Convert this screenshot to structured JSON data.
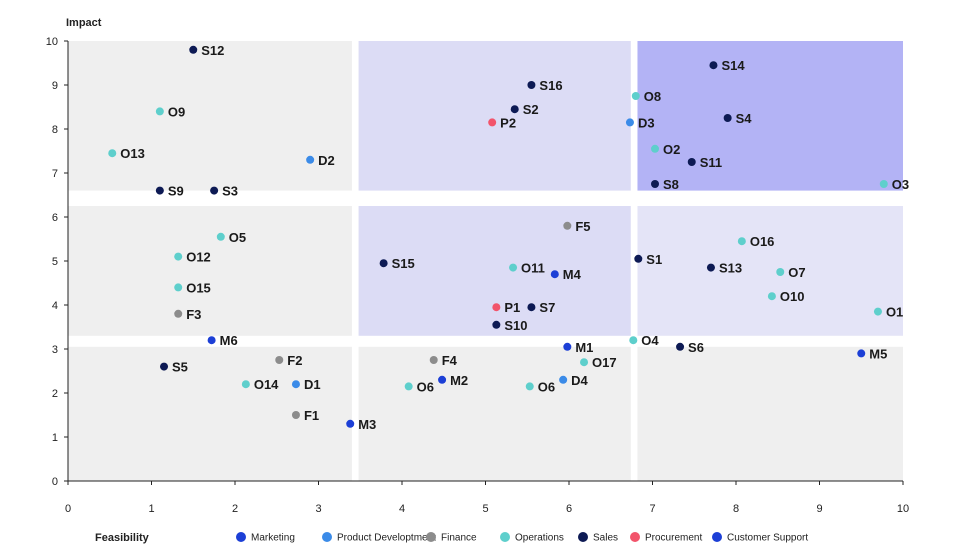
{
  "colors": {
    "region_gray": "#efefef",
    "region_lavender": "#dcdcf5",
    "region_light_lavender": "#e4e4f7",
    "region_violet": "#b3b3f5",
    "axis": "#222222"
  },
  "chart_data": {
    "type": "scatter",
    "xlabel": "Feasibility",
    "ylabel": "Impact",
    "xlim": [
      0,
      10
    ],
    "ylim": [
      0,
      10
    ],
    "x_ticks": [
      "0",
      "1",
      "2",
      "3",
      "4",
      "5",
      "6",
      "7",
      "8",
      "9",
      "10"
    ],
    "y_ticks": [
      "0",
      "1",
      "2",
      "3",
      "4",
      "5",
      "6",
      "7",
      "8",
      "9",
      "10"
    ],
    "legend_position": "bottom",
    "categories": [
      {
        "name": "Marketing",
        "color": "#1c3fd6"
      },
      {
        "name": "Product Developtment",
        "color": "#3b8be8"
      },
      {
        "name": "Finance",
        "color": "#8c8c8c"
      },
      {
        "name": "Operations",
        "color": "#5ecfcc"
      },
      {
        "name": "Sales",
        "color": "#0d1a54"
      },
      {
        "name": "Procurement",
        "color": "#f2546b"
      },
      {
        "name": "Customer Support",
        "color": "#1c3fd6"
      }
    ],
    "regions": [
      {
        "x": [
          0,
          3.4
        ],
        "y": [
          0,
          3.05
        ],
        "fill": "region_gray"
      },
      {
        "x": [
          3.48,
          6.74
        ],
        "y": [
          0,
          3.05
        ],
        "fill": "region_gray"
      },
      {
        "x": [
          6.82,
          10
        ],
        "y": [
          0,
          3.05
        ],
        "fill": "region_gray"
      },
      {
        "x": [
          0,
          3.4
        ],
        "y": [
          3.3,
          6.25
        ],
        "fill": "region_gray"
      },
      {
        "x": [
          3.48,
          6.74
        ],
        "y": [
          3.3,
          6.25
        ],
        "fill": "region_lavender"
      },
      {
        "x": [
          6.82,
          10
        ],
        "y": [
          3.3,
          6.25
        ],
        "fill": "region_light_lavender"
      },
      {
        "x": [
          0,
          3.4
        ],
        "y": [
          6.6,
          10
        ],
        "fill": "region_gray"
      },
      {
        "x": [
          3.48,
          6.74
        ],
        "y": [
          6.6,
          10
        ],
        "fill": "region_lavender"
      },
      {
        "x": [
          6.82,
          10
        ],
        "y": [
          6.6,
          10
        ],
        "fill": "region_violet"
      }
    ],
    "points": [
      {
        "label": "S12",
        "x": 1.5,
        "y": 9.8,
        "category": "Sales"
      },
      {
        "label": "O9",
        "x": 1.1,
        "y": 8.4,
        "category": "Operations"
      },
      {
        "label": "O13",
        "x": 0.53,
        "y": 7.45,
        "category": "Operations"
      },
      {
        "label": "D2",
        "x": 2.9,
        "y": 7.3,
        "category": "Product Developtment"
      },
      {
        "label": "S9",
        "x": 1.1,
        "y": 6.6,
        "category": "Sales"
      },
      {
        "label": "S3",
        "x": 1.75,
        "y": 6.6,
        "category": "Sales"
      },
      {
        "label": "S16",
        "x": 5.55,
        "y": 9.0,
        "category": "Sales"
      },
      {
        "label": "S2",
        "x": 5.35,
        "y": 8.45,
        "category": "Sales"
      },
      {
        "label": "P2",
        "x": 5.08,
        "y": 8.15,
        "category": "Procurement"
      },
      {
        "label": "O8",
        "x": 6.8,
        "y": 8.75,
        "category": "Operations"
      },
      {
        "label": "D3",
        "x": 6.73,
        "y": 8.15,
        "category": "Product Developtment"
      },
      {
        "label": "S14",
        "x": 7.73,
        "y": 9.45,
        "category": "Sales"
      },
      {
        "label": "S4",
        "x": 7.9,
        "y": 8.25,
        "category": "Sales"
      },
      {
        "label": "O2",
        "x": 7.03,
        "y": 7.55,
        "category": "Operations"
      },
      {
        "label": "S11",
        "x": 7.47,
        "y": 7.25,
        "category": "Sales"
      },
      {
        "label": "S8",
        "x": 7.03,
        "y": 6.75,
        "category": "Sales"
      },
      {
        "label": "O3",
        "x": 9.77,
        "y": 6.75,
        "category": "Operations"
      },
      {
        "label": "O5",
        "x": 1.83,
        "y": 5.55,
        "category": "Operations"
      },
      {
        "label": "O12",
        "x": 1.32,
        "y": 5.1,
        "category": "Operations"
      },
      {
        "label": "O15",
        "x": 1.32,
        "y": 4.4,
        "category": "Operations"
      },
      {
        "label": "F3",
        "x": 1.32,
        "y": 3.8,
        "category": "Finance"
      },
      {
        "label": "S15",
        "x": 3.78,
        "y": 4.95,
        "category": "Sales"
      },
      {
        "label": "F5",
        "x": 5.98,
        "y": 5.8,
        "category": "Finance"
      },
      {
        "label": "O11",
        "x": 5.33,
        "y": 4.85,
        "category": "Operations"
      },
      {
        "label": "M4",
        "x": 5.83,
        "y": 4.7,
        "category": "Marketing"
      },
      {
        "label": "P1",
        "x": 5.13,
        "y": 3.95,
        "category": "Procurement"
      },
      {
        "label": "S7",
        "x": 5.55,
        "y": 3.95,
        "category": "Sales"
      },
      {
        "label": "S10",
        "x": 5.13,
        "y": 3.55,
        "category": "Sales"
      },
      {
        "label": "S1",
        "x": 6.83,
        "y": 5.05,
        "category": "Sales"
      },
      {
        "label": "O16",
        "x": 8.07,
        "y": 5.45,
        "category": "Operations"
      },
      {
        "label": "S13",
        "x": 7.7,
        "y": 4.85,
        "category": "Sales"
      },
      {
        "label": "O7",
        "x": 8.53,
        "y": 4.75,
        "category": "Operations"
      },
      {
        "label": "O10",
        "x": 8.43,
        "y": 4.2,
        "category": "Operations"
      },
      {
        "label": "O1",
        "x": 9.7,
        "y": 3.85,
        "category": "Operations"
      },
      {
        "label": "M6",
        "x": 1.72,
        "y": 3.2,
        "category": "Marketing"
      },
      {
        "label": "S5",
        "x": 1.15,
        "y": 2.6,
        "category": "Sales"
      },
      {
        "label": "F2",
        "x": 2.53,
        "y": 2.75,
        "category": "Finance"
      },
      {
        "label": "O14",
        "x": 2.13,
        "y": 2.2,
        "category": "Operations"
      },
      {
        "label": "D1",
        "x": 2.73,
        "y": 2.2,
        "category": "Product Developtment"
      },
      {
        "label": "F1",
        "x": 2.73,
        "y": 1.5,
        "category": "Finance"
      },
      {
        "label": "M3",
        "x": 3.38,
        "y": 1.3,
        "category": "Marketing"
      },
      {
        "label": "F4",
        "x": 4.38,
        "y": 2.75,
        "category": "Finance"
      },
      {
        "label": "O6",
        "x": 4.08,
        "y": 2.15,
        "category": "Operations"
      },
      {
        "label": "M2",
        "x": 4.48,
        "y": 2.3,
        "category": "Marketing"
      },
      {
        "label": "O6",
        "x": 5.53,
        "y": 2.15,
        "category": "Operations"
      },
      {
        "label": "D4",
        "x": 5.93,
        "y": 2.3,
        "category": "Product Developtment"
      },
      {
        "label": "M1",
        "x": 5.98,
        "y": 3.05,
        "category": "Marketing"
      },
      {
        "label": "O17",
        "x": 6.18,
        "y": 2.7,
        "category": "Operations"
      },
      {
        "label": "O4",
        "x": 6.77,
        "y": 3.2,
        "category": "Operations"
      },
      {
        "label": "S6",
        "x": 7.33,
        "y": 3.05,
        "category": "Sales"
      },
      {
        "label": "M5",
        "x": 9.5,
        "y": 2.9,
        "category": "Customer Support"
      }
    ]
  }
}
